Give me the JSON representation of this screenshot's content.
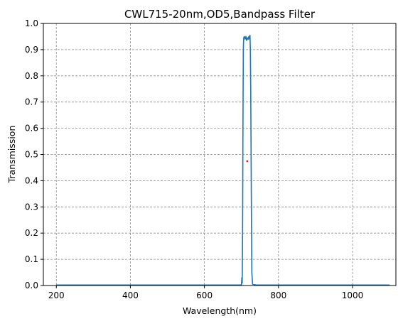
{
  "chart_data": {
    "type": "line",
    "title": "CWL715-20nm,OD5,Bandpass Filter",
    "xlabel": "Wavelength(nm)",
    "ylabel": "Transmission",
    "xlim": [
      165,
      1117
    ],
    "ylim": [
      0,
      1
    ],
    "xticks": [
      200,
      400,
      600,
      800,
      1000
    ],
    "yticks": [
      0,
      0.1,
      0.2,
      0.3,
      0.4,
      0.5,
      0.6,
      0.7,
      0.8,
      0.9,
      1.0
    ],
    "xtick_labels": [
      "200",
      "400",
      "600",
      "800",
      "1000"
    ],
    "ytick_labels": [
      "0.0",
      "0.1",
      "0.2",
      "0.3",
      "0.4",
      "0.5",
      "0.6",
      "0.7",
      "0.8",
      "0.9",
      "1.0"
    ],
    "grid": true,
    "grid_style": "dashed",
    "legend": "none",
    "series": [
      {
        "color": "#1f77b4",
        "x": [
          200,
          400,
          600,
          695,
          700,
          701,
          702,
          703,
          704,
          705,
          706,
          708,
          710,
          712,
          714,
          716,
          718,
          720,
          722,
          723,
          724,
          725,
          726,
          727,
          728,
          730,
          740,
          800,
          1000,
          1100
        ],
        "y": [
          0.002,
          0.002,
          0.002,
          0.002,
          0.003,
          0.03,
          0.01,
          0.2,
          0.6,
          0.9,
          0.945,
          0.95,
          0.94,
          0.95,
          0.935,
          0.945,
          0.94,
          0.95,
          0.94,
          0.955,
          0.9,
          0.75,
          0.5,
          0.25,
          0.05,
          0.005,
          0.002,
          0.002,
          0.002,
          0.002
        ]
      }
    ],
    "marker_points": [
      {
        "x": 715,
        "y": 0.475,
        "color": "#d62728"
      }
    ]
  }
}
